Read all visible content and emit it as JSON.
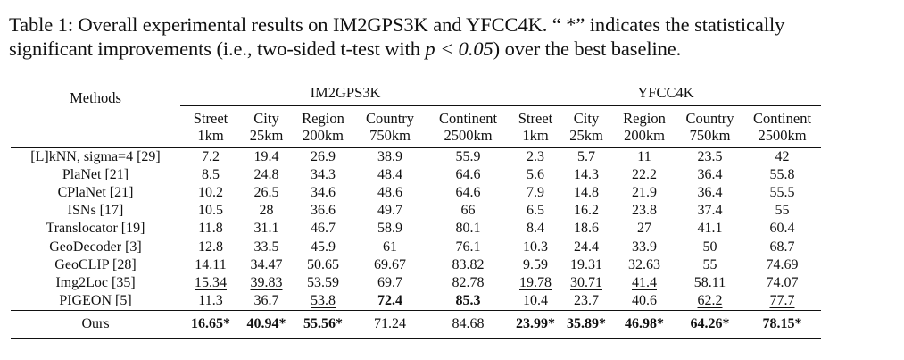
{
  "caption": {
    "line1": "Table 1: Overall experimental results on IM2GPS3K and YFCC4K. “ *” indicates the statistically",
    "line2_a": "significant improvements (i.e., two-sided t-test with ",
    "line2_math": "p < 0.05",
    "line2_b": ") over the best baseline."
  },
  "header": {
    "methods": "Methods",
    "group1": "IM2GPS3K",
    "group2": "YFCC4K",
    "columns": [
      {
        "name": "Street",
        "unit": "1km"
      },
      {
        "name": "City",
        "unit": "25km"
      },
      {
        "name": "Region",
        "unit": "200km"
      },
      {
        "name": "Country",
        "unit": "750km"
      },
      {
        "name": "Continent",
        "unit": "2500km"
      },
      {
        "name": "Street",
        "unit": "1km"
      },
      {
        "name": "City",
        "unit": "25km"
      },
      {
        "name": "Region",
        "unit": "200km"
      },
      {
        "name": "Country",
        "unit": "750km"
      },
      {
        "name": "Continent",
        "unit": "2500km"
      }
    ]
  },
  "rows": [
    {
      "method": "[L]kNN, sigma=4 [29]",
      "values": [
        "7.2",
        "19.4",
        "26.9",
        "38.9",
        "55.9",
        "2.3",
        "5.7",
        "11",
        "23.5",
        "42"
      ]
    },
    {
      "method": "PlaNet [21]",
      "values": [
        "8.5",
        "24.8",
        "34.3",
        "48.4",
        "64.6",
        "5.6",
        "14.3",
        "22.2",
        "36.4",
        "55.8"
      ]
    },
    {
      "method": "CPlaNet [21]",
      "values": [
        "10.2",
        "26.5",
        "34.6",
        "48.6",
        "64.6",
        "7.9",
        "14.8",
        "21.9",
        "36.4",
        "55.5"
      ]
    },
    {
      "method": "ISNs [17]",
      "values": [
        "10.5",
        "28",
        "36.6",
        "49.7",
        "66",
        "6.5",
        "16.2",
        "23.8",
        "37.4",
        "55"
      ]
    },
    {
      "method": "Translocator [19]",
      "values": [
        "11.8",
        "31.1",
        "46.7",
        "58.9",
        "80.1",
        "8.4",
        "18.6",
        "27",
        "41.1",
        "60.4"
      ]
    },
    {
      "method": "GeoDecoder [3]",
      "values": [
        "12.8",
        "33.5",
        "45.9",
        "61",
        "76.1",
        "10.3",
        "24.4",
        "33.9",
        "50",
        "68.7"
      ]
    },
    {
      "method": "GeoCLIP [28]",
      "values": [
        "14.11",
        "34.47",
        "50.65",
        "69.67",
        "83.82",
        "9.59",
        "19.31",
        "32.63",
        "55",
        "74.69"
      ]
    },
    {
      "method": "Img2Loc [35]",
      "values": [
        "15.34",
        "39.83",
        "53.59",
        "69.7",
        "82.78",
        "19.78",
        "30.71",
        "41.4",
        "58.11",
        "74.07"
      ]
    },
    {
      "method": "PIGEON [5]",
      "values": [
        "11.3",
        "36.7",
        "53.8",
        "72.4",
        "85.3",
        "10.4",
        "23.7",
        "40.6",
        "62.2",
        "77.7"
      ]
    }
  ],
  "ours": {
    "method": "Ours",
    "values": [
      "16.65*",
      "40.94*",
      "55.56*",
      "71.24",
      "84.68",
      "23.99*",
      "35.89*",
      "46.98*",
      "64.26*",
      "78.15*"
    ]
  },
  "styles": {
    "bold": [
      [
        8,
        3
      ],
      [
        8,
        4
      ],
      [
        9,
        0
      ],
      [
        9,
        1
      ],
      [
        9,
        2
      ],
      [
        9,
        5
      ],
      [
        9,
        6
      ],
      [
        9,
        7
      ],
      [
        9,
        8
      ],
      [
        9,
        9
      ]
    ],
    "underline": [
      [
        7,
        0
      ],
      [
        7,
        1
      ],
      [
        8,
        2
      ],
      [
        9,
        3
      ],
      [
        9,
        4
      ],
      [
        7,
        5
      ],
      [
        7,
        6
      ],
      [
        7,
        7
      ],
      [
        8,
        8
      ],
      [
        8,
        9
      ]
    ]
  }
}
